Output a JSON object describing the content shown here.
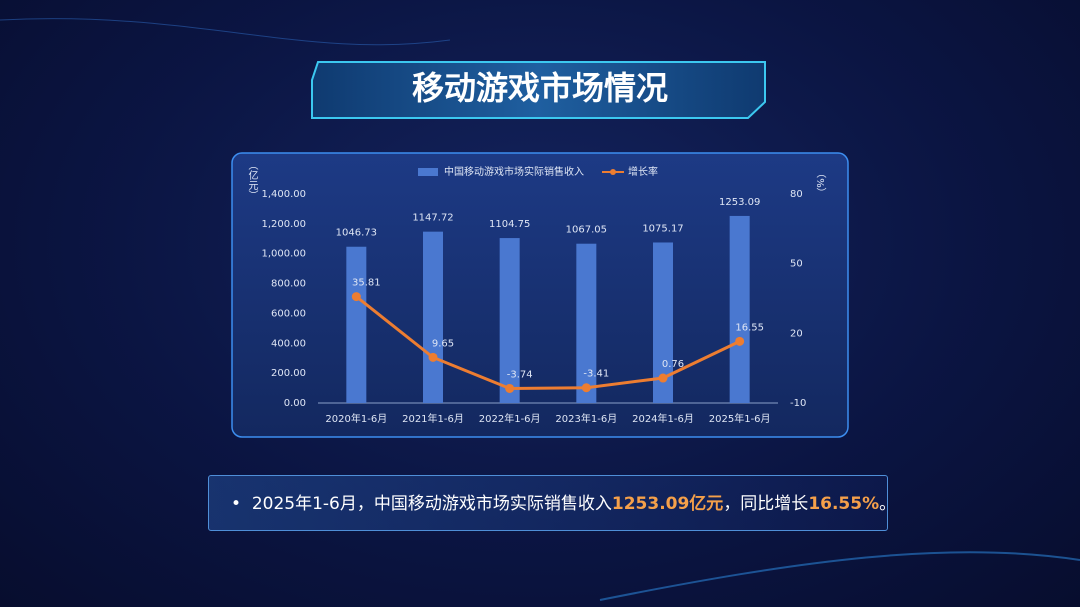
{
  "slide": {
    "title": "移动游戏市场情况",
    "bullet": [
      "2025年1-6月，中国移动游戏市场实际销售收入",
      "1253.09亿元",
      "，同比增长",
      "16.55%",
      "。"
    ]
  },
  "chart_data": {
    "type": "bar-line",
    "categories": [
      "2020年1-6月",
      "2021年1-6月",
      "2022年1-6月",
      "2023年1-6月",
      "2024年1-6月",
      "2025年1-6月"
    ],
    "series": [
      {
        "name": "中国移动游戏市场实际销售收入",
        "type": "bar",
        "color": "#4a78d0",
        "values": [
          1046.73,
          1147.72,
          1104.75,
          1067.05,
          1075.17,
          1253.09
        ]
      },
      {
        "name": "增长率",
        "type": "line",
        "color": "#ed7d31",
        "axis": "y2",
        "values": [
          35.81,
          9.65,
          -3.74,
          -3.41,
          0.76,
          16.55
        ]
      }
    ],
    "ylabel": "（亿元）",
    "y2label": "（%）",
    "ylim": [
      0,
      1400
    ],
    "yticks": [
      {
        "value": 0,
        "label": "0.00"
      },
      {
        "value": 200,
        "label": "200.00"
      },
      {
        "value": 400,
        "label": "400.00"
      },
      {
        "value": 600,
        "label": "600.00"
      },
      {
        "value": 800,
        "label": "800.00"
      },
      {
        "value": 1000,
        "label": "1,000.00"
      },
      {
        "value": 1200,
        "label": "1,200.00"
      },
      {
        "value": 1400,
        "label": "1,400.00"
      }
    ],
    "y2lim": [
      -10,
      80
    ],
    "y2ticks": [
      -10,
      20,
      50,
      80
    ],
    "legend": "top"
  }
}
